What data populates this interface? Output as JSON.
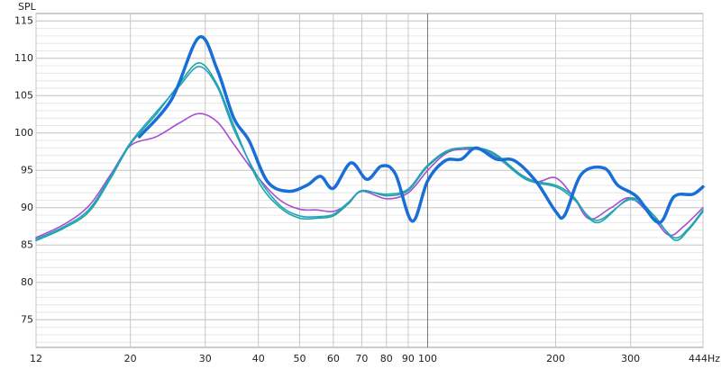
{
  "chart_data": {
    "type": "line",
    "y_label": "SPL",
    "xscale": "log",
    "xlim": [
      12,
      444
    ],
    "ylim": [
      71.3,
      116
    ],
    "xticks": [
      12,
      20,
      30,
      40,
      50,
      60,
      70,
      80,
      90,
      100,
      200,
      300,
      {
        "value": 444,
        "label": "444Hz"
      }
    ],
    "yticks": [
      75,
      80,
      85,
      90,
      95,
      100,
      105,
      110,
      115
    ],
    "y_minor_step": 1,
    "grid": true,
    "series": [
      {
        "name": "purple",
        "color": "#a64fd0",
        "width": 1.6,
        "x": [
          12,
          14,
          16,
          18,
          20,
          23,
          26,
          29,
          32,
          35,
          40,
          45,
          50,
          55,
          60,
          65,
          70,
          80,
          90,
          100,
          110,
          120,
          140,
          160,
          180,
          200,
          220,
          240,
          270,
          300,
          340,
          370,
          400,
          444
        ],
        "values": [
          86,
          87.8,
          90.3,
          94.5,
          98.3,
          99.5,
          101.3,
          102.6,
          101.5,
          98.5,
          94,
          91,
          89.8,
          89.7,
          89.5,
          90.5,
          92.2,
          91.2,
          92,
          95,
          97.2,
          97.8,
          97.5,
          95,
          93.5,
          94,
          91.5,
          88.5,
          90,
          91.3,
          88.5,
          86.3,
          87.5,
          90
        ]
      },
      {
        "name": "teal",
        "color": "#1aa89c",
        "width": 1.6,
        "x": [
          12,
          14,
          16,
          18,
          20,
          23,
          26,
          29,
          32,
          35,
          40,
          45,
          50,
          55,
          60,
          65,
          70,
          80,
          90,
          100,
          115,
          140,
          170,
          200,
          220,
          250,
          300,
          340,
          380,
          410,
          444
        ],
        "values": [
          85.6,
          87.3,
          89.5,
          94,
          98.5,
          102.5,
          106.5,
          109.4,
          106.5,
          101,
          93.5,
          90,
          88.6,
          88.6,
          88.9,
          90.5,
          92.3,
          91.6,
          92.3,
          95.5,
          97.8,
          97.6,
          94,
          93,
          91.5,
          88,
          91.3,
          89,
          85.7,
          87,
          89.5
        ]
      },
      {
        "name": "cyan",
        "color": "#2a9fc4",
        "width": 1.6,
        "x": [
          12,
          14,
          16,
          18,
          20,
          23,
          26,
          29,
          32,
          35,
          40,
          45,
          50,
          55,
          60,
          65,
          70,
          80,
          90,
          100,
          115,
          140,
          170,
          200,
          220,
          250,
          300,
          340,
          380,
          410,
          444
        ],
        "values": [
          85.8,
          87.5,
          89.8,
          94.3,
          98.7,
          102.8,
          106.2,
          108.9,
          106.2,
          100.5,
          94,
          90.3,
          88.9,
          88.8,
          89.1,
          90.7,
          92.2,
          91.8,
          92.5,
          95.7,
          97.9,
          97.3,
          93.8,
          92.8,
          91.2,
          88.3,
          91.1,
          88.7,
          86,
          87.2,
          89.7
        ]
      },
      {
        "name": "blue",
        "color": "#1a6fd6",
        "width": 3.5,
        "x": [
          21,
          25,
          29,
          32,
          35,
          38,
          42,
          47,
          52,
          56,
          60,
          66,
          72,
          78,
          84,
          92,
          100,
          110,
          120,
          130,
          145,
          160,
          180,
          200,
          210,
          230,
          260,
          280,
          310,
          350,
          380,
          420,
          444
        ],
        "values": [
          99.5,
          104.5,
          112.8,
          108.5,
          102,
          99,
          93.5,
          92.2,
          93,
          94.2,
          92.6,
          96,
          93.8,
          95.6,
          94.5,
          88.2,
          93.6,
          96.3,
          96.5,
          98,
          96.5,
          96.3,
          93.5,
          89.5,
          89,
          94.5,
          95.3,
          93,
          91.5,
          88,
          91.5,
          91.8,
          92.8
        ]
      }
    ]
  }
}
